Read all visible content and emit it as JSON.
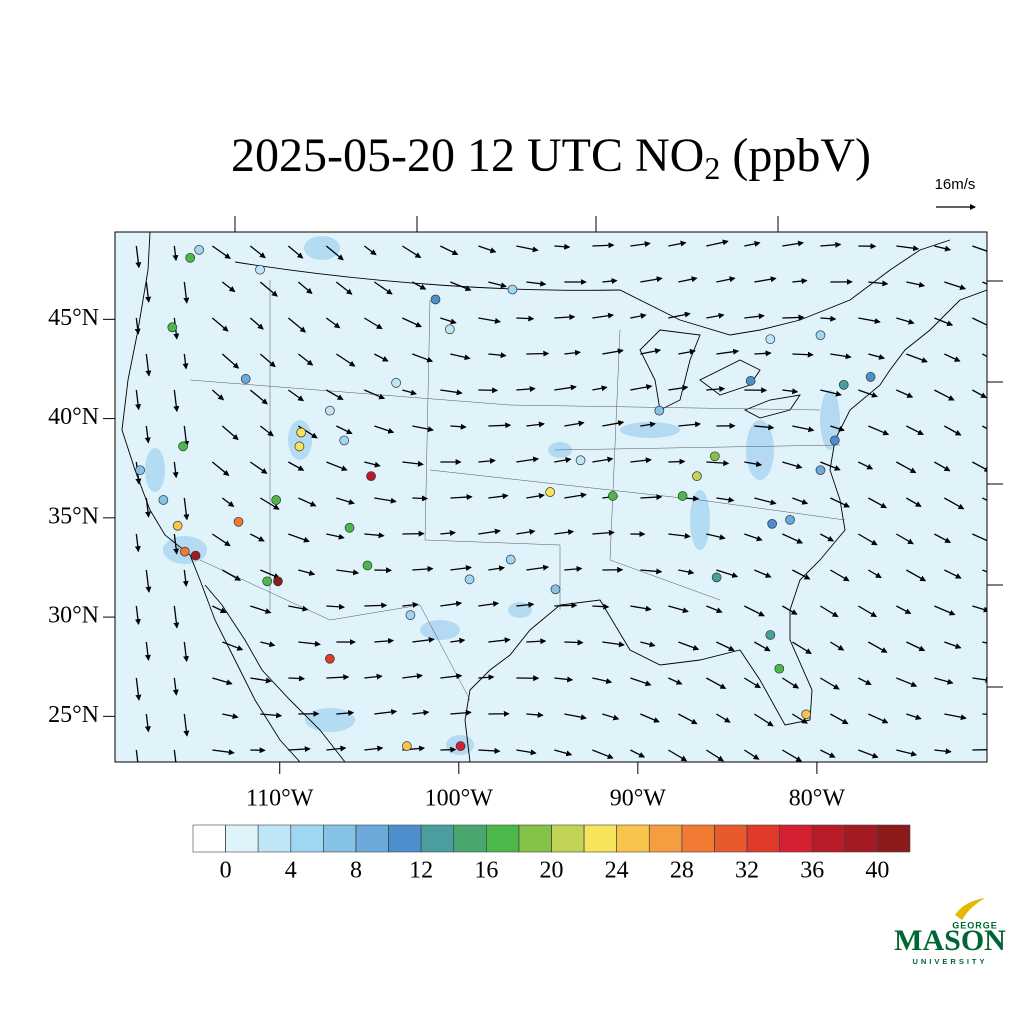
{
  "map": {
    "title_parts": [
      "2025-05-20 12 UTC NO",
      "2",
      " (ppbV)"
    ],
    "vector_reference": "16m/s",
    "xlim": [
      -119.2,
      -70.5
    ],
    "ylim": [
      22.7,
      49.4
    ],
    "lat_labels": [
      {
        "value": 45,
        "label": "45°N"
      },
      {
        "value": 40,
        "label": "40°N"
      },
      {
        "value": 35,
        "label": "35°N"
      },
      {
        "value": 30,
        "label": "30°N"
      },
      {
        "value": 25,
        "label": "25°N"
      }
    ],
    "lon_labels": [
      {
        "value": -110,
        "label": "110°W"
      },
      {
        "value": -100,
        "label": "100°W"
      },
      {
        "value": -90,
        "label": "90°W"
      },
      {
        "value": -80,
        "label": "80°W"
      }
    ],
    "colorbar": {
      "levels": [
        0,
        2,
        4,
        6,
        8,
        10,
        12,
        14,
        16,
        18,
        20,
        22,
        24,
        26,
        28,
        30,
        32,
        34,
        36,
        38,
        40
      ],
      "colors": [
        "#ffffff",
        "#dff3fb",
        "#bfe6f7",
        "#9fd7f2",
        "#86c2e6",
        "#6aa9da",
        "#4d8fcc",
        "#4a9e9e",
        "#48a66e",
        "#4cb84a",
        "#84c24a",
        "#c2d356",
        "#f7e45a",
        "#f8c44c",
        "#f59d41",
        "#f07a32",
        "#e85a2c",
        "#e03a2a",
        "#d42030",
        "#b81c28",
        "#a31a22",
        "#8c1a1a"
      ],
      "ticks": [
        0,
        4,
        8,
        12,
        16,
        20,
        24,
        28,
        32,
        36,
        40
      ]
    },
    "stations": [
      [
        -114.7,
        33.1,
        38
      ],
      [
        -115.3,
        33.3,
        28
      ],
      [
        -115.7,
        34.6,
        24
      ],
      [
        -110.1,
        31.8,
        40
      ],
      [
        -110.7,
        31.8,
        17
      ],
      [
        -112.3,
        34.8,
        28
      ],
      [
        -104.9,
        37.1,
        36
      ],
      [
        -106.1,
        34.5,
        16
      ],
      [
        -105.1,
        32.6,
        17
      ],
      [
        -108.8,
        39.3,
        23
      ],
      [
        -108.9,
        38.6,
        22
      ],
      [
        -115.4,
        38.6,
        17
      ],
      [
        -116.0,
        44.6,
        17
      ],
      [
        -115.0,
        48.1,
        16
      ],
      [
        -110.2,
        35.9,
        16
      ],
      [
        -94.9,
        36.3,
        22
      ],
      [
        -91.4,
        36.1,
        16
      ],
      [
        -86.7,
        37.1,
        21
      ],
      [
        -87.5,
        36.1,
        16
      ],
      [
        -85.7,
        38.1,
        18
      ],
      [
        -80.6,
        25.1,
        24
      ],
      [
        -82.1,
        27.4,
        16
      ],
      [
        -82.6,
        29.1,
        13
      ],
      [
        -85.6,
        32.0,
        13
      ],
      [
        -107.2,
        27.9,
        32
      ],
      [
        -102.9,
        23.5,
        24
      ],
      [
        -99.9,
        23.5,
        34
      ],
      [
        -101.3,
        46.0,
        11
      ],
      [
        -97.0,
        46.5,
        5
      ],
      [
        -83.7,
        41.9,
        11
      ],
      [
        -77.0,
        42.1,
        11
      ],
      [
        -78.5,
        41.7,
        12
      ],
      [
        -114.5,
        48.5,
        4
      ],
      [
        -111.1,
        47.5,
        3
      ],
      [
        -107.2,
        40.4,
        3
      ],
      [
        -106.4,
        38.9,
        5
      ],
      [
        -117.8,
        37.4,
        6
      ],
      [
        -116.5,
        35.9,
        6
      ],
      [
        -102.7,
        30.1,
        5
      ],
      [
        -97.1,
        32.9,
        4
      ],
      [
        -93.2,
        37.9,
        3
      ],
      [
        -88.8,
        40.4,
        7
      ],
      [
        -82.5,
        34.7,
        10
      ],
      [
        -81.5,
        34.9,
        9
      ],
      [
        -79.0,
        38.9,
        10
      ],
      [
        -79.8,
        37.4,
        9
      ],
      [
        -82.6,
        44.0,
        2
      ],
      [
        -79.8,
        44.2,
        5
      ],
      [
        -100.5,
        44.5,
        2
      ],
      [
        -99.4,
        31.9,
        4
      ],
      [
        -94.6,
        31.4,
        6
      ],
      [
        -103.5,
        41.8,
        2
      ],
      [
        -111.9,
        42.0,
        8
      ]
    ]
  },
  "logo": {
    "top": "GEORGE",
    "main": "MASON",
    "bottom": "UNIVERSITY"
  }
}
